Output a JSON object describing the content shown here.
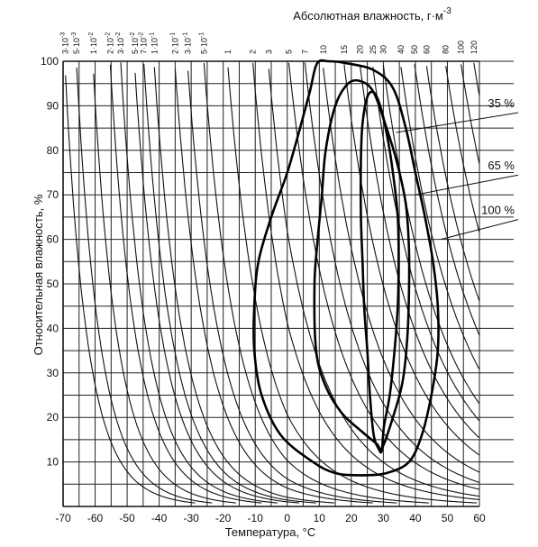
{
  "chart_data": {
    "type": "line",
    "xlabel": "Температура, °С",
    "ylabel": "Относительная влажность, %",
    "top_axis_title": "Абсолютная влажность, г·м",
    "top_axis_title_sup": "-3",
    "xlim": [
      -70,
      60
    ],
    "ylim": [
      0,
      100
    ],
    "x_ticks": [
      -70,
      -60,
      -50,
      -40,
      -30,
      -20,
      -10,
      0,
      10,
      20,
      30,
      40,
      50,
      60
    ],
    "y_ticks": [
      10,
      20,
      30,
      40,
      50,
      60,
      70,
      80,
      90,
      100
    ],
    "grid": true,
    "abs_humidity_lines": [
      {
        "base": "3·10",
        "exp": "-3",
        "value": 0.003
      },
      {
        "base": "5·10",
        "exp": "-3",
        "value": 0.005
      },
      {
        "base": "1·10",
        "exp": "-2",
        "value": 0.01
      },
      {
        "base": "2·10",
        "exp": "-2",
        "value": 0.02
      },
      {
        "base": "3·10",
        "exp": "-2",
        "value": 0.03
      },
      {
        "base": "5·10",
        "exp": "-2",
        "value": 0.05
      },
      {
        "base": "7·10",
        "exp": "-2",
        "value": 0.07
      },
      {
        "base": "1·10",
        "exp": "-1",
        "value": 0.1
      },
      {
        "base": "2·10",
        "exp": "-1",
        "value": 0.2
      },
      {
        "base": "3·10",
        "exp": "-1",
        "value": 0.3
      },
      {
        "base": "5·10",
        "exp": "-1",
        "value": 0.5
      },
      {
        "base": "1",
        "exp": "",
        "value": 1
      },
      {
        "base": "2",
        "exp": "",
        "value": 2
      },
      {
        "base": "3",
        "exp": "",
        "value": 3
      },
      {
        "base": "5",
        "exp": "",
        "value": 5
      },
      {
        "base": "7",
        "exp": "",
        "value": 7
      },
      {
        "base": "10",
        "exp": "",
        "value": 10
      },
      {
        "base": "15",
        "exp": "",
        "value": 15
      },
      {
        "base": "20",
        "exp": "",
        "value": 20
      },
      {
        "base": "25",
        "exp": "",
        "value": 25
      },
      {
        "base": "30",
        "exp": "",
        "value": 30
      },
      {
        "base": "40",
        "exp": "",
        "value": 40
      },
      {
        "base": "50",
        "exp": "",
        "value": 50
      },
      {
        "base": "60",
        "exp": "",
        "value": 60
      },
      {
        "base": "80",
        "exp": "",
        "value": 80
      },
      {
        "base": "100",
        "exp": "",
        "value": 100
      },
      {
        "base": "120",
        "exp": "",
        "value": 120
      }
    ],
    "series": [
      {
        "name": "100 %",
        "label_at": [
          48,
          60
        ],
        "points": [
          [
            9.3,
            99.5
          ],
          [
            13,
            100
          ],
          [
            19,
            99.5
          ],
          [
            27,
            98
          ],
          [
            33,
            94
          ],
          [
            37,
            85
          ],
          [
            40,
            75
          ],
          [
            43,
            65
          ],
          [
            45.5,
            55
          ],
          [
            47,
            45
          ],
          [
            47,
            35
          ],
          [
            45,
            25
          ],
          [
            42,
            16
          ],
          [
            38,
            10
          ],
          [
            31,
            7.5
          ],
          [
            23,
            7
          ],
          [
            15,
            7.5
          ],
          [
            8,
            10
          ],
          [
            -2,
            16
          ],
          [
            -8,
            25
          ],
          [
            -10.3,
            35
          ],
          [
            -10.3,
            45
          ],
          [
            -9,
            55
          ],
          [
            -5,
            65
          ],
          [
            0,
            75
          ],
          [
            4,
            85
          ],
          [
            7,
            93
          ],
          [
            9.3,
            99.5
          ]
        ]
      },
      {
        "name": "65 %",
        "label_at": [
          40,
          70
        ],
        "points": [
          [
            12,
            80
          ],
          [
            15,
            90
          ],
          [
            19,
            95
          ],
          [
            23,
            95.5
          ],
          [
            27,
            93
          ],
          [
            31,
            85
          ],
          [
            34,
            78
          ],
          [
            37,
            68
          ],
          [
            38,
            58
          ],
          [
            38,
            48
          ],
          [
            37.5,
            38
          ],
          [
            36,
            28
          ],
          [
            33,
            20
          ],
          [
            29.5,
            13
          ],
          [
            28,
            14
          ],
          [
            23,
            17
          ],
          [
            17,
            21
          ],
          [
            12,
            27
          ],
          [
            9,
            35
          ],
          [
            8.5,
            50
          ],
          [
            9.5,
            60
          ],
          [
            10.8,
            70
          ],
          [
            12,
            80
          ]
        ]
      },
      {
        "name": "35 %",
        "label_at": [
          34,
          84
        ],
        "points": [
          [
            23,
            78
          ],
          [
            23.5,
            86
          ],
          [
            25,
            92
          ],
          [
            27,
            93
          ],
          [
            29,
            90
          ],
          [
            31,
            84
          ],
          [
            33,
            75
          ],
          [
            34.5,
            65
          ],
          [
            34.8,
            55
          ],
          [
            34.5,
            45
          ],
          [
            33.5,
            35
          ],
          [
            32,
            25
          ],
          [
            30.2,
            18
          ],
          [
            29.5,
            12.5
          ],
          [
            28.5,
            13
          ],
          [
            27,
            16
          ],
          [
            25.8,
            25
          ],
          [
            25,
            35
          ],
          [
            24,
            45
          ],
          [
            23.5,
            55
          ],
          [
            23,
            65
          ],
          [
            23,
            78
          ]
        ]
      }
    ]
  }
}
